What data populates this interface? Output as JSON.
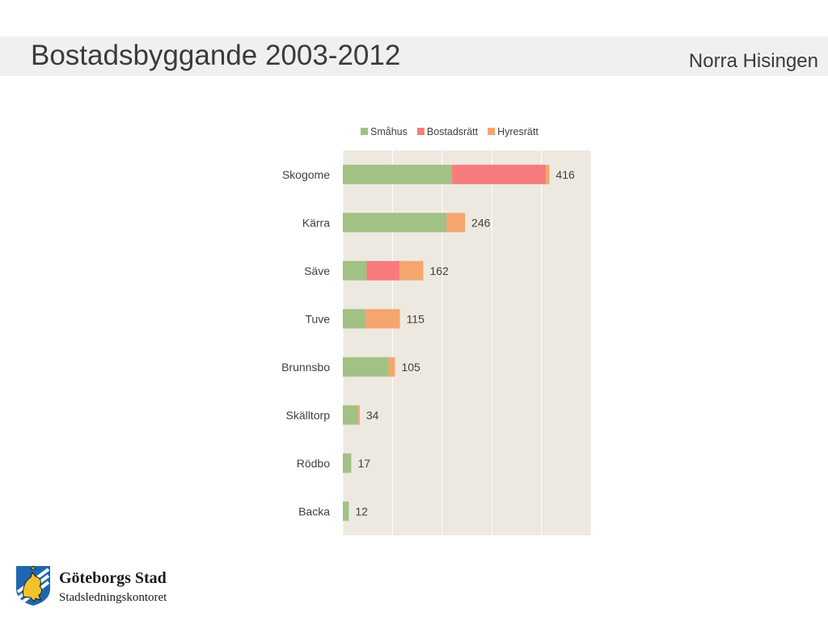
{
  "header": {
    "title": "Bostadsbyggande 2003-2012",
    "subtitle": "Norra Hisingen"
  },
  "logo": {
    "name": "Göteborgs Stad",
    "department": "Stadsledningskontoret"
  },
  "colors": {
    "plot_background": "#ede9e0",
    "gridline": "#ffffff",
    "label_text": "#404040"
  },
  "chart_data": {
    "type": "bar",
    "orientation": "horizontal",
    "stacked": true,
    "categories": [
      "Skogome",
      "Kärra",
      "Säve",
      "Tuve",
      "Brunnsbo",
      "Skälltorp",
      "Rödbo",
      "Backa"
    ],
    "series": [
      {
        "name": "Småhus",
        "color": "#a2c184",
        "values": [
          220,
          209,
          48,
          46,
          92,
          30,
          17,
          12
        ]
      },
      {
        "name": "Bostadsrätt",
        "color": "#f77b7c",
        "values": [
          189,
          0,
          66,
          0,
          0,
          0,
          0,
          0
        ]
      },
      {
        "name": "Hyresrätt",
        "color": "#f5a56e",
        "values": [
          7,
          37,
          48,
          69,
          13,
          4,
          0,
          0
        ]
      }
    ],
    "totals": [
      "416",
      "246",
      "162",
      "115",
      "105",
      "34",
      "17",
      "12"
    ],
    "xlim": [
      0,
      500
    ],
    "xgrid": [
      0,
      100,
      200,
      300,
      400,
      500
    ],
    "grid": true,
    "axis_labels_shown": false,
    "legend_position": "top"
  }
}
